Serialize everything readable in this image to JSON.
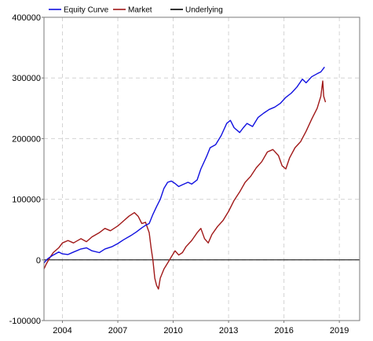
{
  "chart_data": {
    "type": "line",
    "title": "",
    "xlabel": "",
    "ylabel": "",
    "xlim": [
      2003.0,
      2020.1
    ],
    "ylim": [
      -100000,
      400000
    ],
    "x_ticks": [
      2004,
      2007,
      2010,
      2013,
      2016,
      2019
    ],
    "x_tick_labels": [
      "2004",
      "2007",
      "2010",
      "2013",
      "2016",
      "2019"
    ],
    "y_ticks": [
      -100000,
      0,
      100000,
      200000,
      300000,
      400000
    ],
    "y_tick_labels": [
      "-100000",
      "0",
      "100000",
      "200000",
      "300000",
      "400000"
    ],
    "grid": true,
    "legend_position": "top-left",
    "series": [
      {
        "name": "Equity Curve",
        "color": "#1010e0",
        "points": [
          [
            2003.0,
            -5000
          ],
          [
            2003.2,
            2000
          ],
          [
            2003.5,
            8000
          ],
          [
            2003.8,
            13000
          ],
          [
            2004.0,
            10000
          ],
          [
            2004.3,
            9000
          ],
          [
            2004.6,
            13000
          ],
          [
            2005.0,
            18000
          ],
          [
            2005.3,
            20000
          ],
          [
            2005.6,
            15000
          ],
          [
            2006.0,
            12000
          ],
          [
            2006.3,
            18000
          ],
          [
            2006.7,
            22000
          ],
          [
            2007.0,
            27000
          ],
          [
            2007.3,
            33000
          ],
          [
            2007.7,
            40000
          ],
          [
            2008.0,
            46000
          ],
          [
            2008.3,
            53000
          ],
          [
            2008.5,
            57000
          ],
          [
            2008.7,
            60000
          ],
          [
            2008.9,
            75000
          ],
          [
            2009.1,
            88000
          ],
          [
            2009.3,
            100000
          ],
          [
            2009.5,
            118000
          ],
          [
            2009.7,
            128000
          ],
          [
            2009.9,
            130000
          ],
          [
            2010.1,
            126000
          ],
          [
            2010.3,
            121000
          ],
          [
            2010.5,
            124000
          ],
          [
            2010.8,
            128000
          ],
          [
            2011.0,
            125000
          ],
          [
            2011.3,
            132000
          ],
          [
            2011.5,
            150000
          ],
          [
            2011.8,
            170000
          ],
          [
            2012.0,
            185000
          ],
          [
            2012.3,
            190000
          ],
          [
            2012.6,
            205000
          ],
          [
            2012.9,
            225000
          ],
          [
            2013.1,
            230000
          ],
          [
            2013.3,
            218000
          ],
          [
            2013.6,
            210000
          ],
          [
            2013.8,
            218000
          ],
          [
            2014.0,
            225000
          ],
          [
            2014.3,
            220000
          ],
          [
            2014.6,
            235000
          ],
          [
            2014.9,
            242000
          ],
          [
            2015.2,
            248000
          ],
          [
            2015.5,
            252000
          ],
          [
            2015.8,
            258000
          ],
          [
            2016.1,
            268000
          ],
          [
            2016.4,
            275000
          ],
          [
            2016.7,
            285000
          ],
          [
            2017.0,
            298000
          ],
          [
            2017.2,
            292000
          ],
          [
            2017.5,
            302000
          ],
          [
            2017.8,
            307000
          ],
          [
            2018.0,
            310000
          ],
          [
            2018.2,
            318000
          ]
        ]
      },
      {
        "name": "Market",
        "color": "#a01818",
        "points": [
          [
            2003.0,
            -15000
          ],
          [
            2003.1,
            -8000
          ],
          [
            2003.3,
            3000
          ],
          [
            2003.5,
            12000
          ],
          [
            2003.8,
            20000
          ],
          [
            2004.0,
            28000
          ],
          [
            2004.3,
            32000
          ],
          [
            2004.6,
            28000
          ],
          [
            2005.0,
            35000
          ],
          [
            2005.3,
            30000
          ],
          [
            2005.6,
            38000
          ],
          [
            2006.0,
            45000
          ],
          [
            2006.3,
            52000
          ],
          [
            2006.6,
            48000
          ],
          [
            2007.0,
            56000
          ],
          [
            2007.3,
            64000
          ],
          [
            2007.6,
            72000
          ],
          [
            2007.9,
            78000
          ],
          [
            2008.1,
            72000
          ],
          [
            2008.3,
            60000
          ],
          [
            2008.5,
            62000
          ],
          [
            2008.7,
            45000
          ],
          [
            2008.8,
            20000
          ],
          [
            2008.9,
            0
          ],
          [
            2009.0,
            -30000
          ],
          [
            2009.1,
            -42000
          ],
          [
            2009.2,
            -48000
          ],
          [
            2009.3,
            -30000
          ],
          [
            2009.5,
            -15000
          ],
          [
            2009.7,
            -5000
          ],
          [
            2009.9,
            5000
          ],
          [
            2010.1,
            15000
          ],
          [
            2010.3,
            8000
          ],
          [
            2010.5,
            12000
          ],
          [
            2010.7,
            22000
          ],
          [
            2011.0,
            32000
          ],
          [
            2011.3,
            45000
          ],
          [
            2011.5,
            52000
          ],
          [
            2011.7,
            35000
          ],
          [
            2011.9,
            28000
          ],
          [
            2012.1,
            42000
          ],
          [
            2012.4,
            55000
          ],
          [
            2012.7,
            65000
          ],
          [
            2013.0,
            80000
          ],
          [
            2013.3,
            98000
          ],
          [
            2013.6,
            112000
          ],
          [
            2013.9,
            128000
          ],
          [
            2014.2,
            138000
          ],
          [
            2014.5,
            152000
          ],
          [
            2014.8,
            162000
          ],
          [
            2015.1,
            178000
          ],
          [
            2015.4,
            182000
          ],
          [
            2015.7,
            172000
          ],
          [
            2015.9,
            155000
          ],
          [
            2016.1,
            150000
          ],
          [
            2016.3,
            168000
          ],
          [
            2016.6,
            185000
          ],
          [
            2016.9,
            195000
          ],
          [
            2017.2,
            212000
          ],
          [
            2017.5,
            232000
          ],
          [
            2017.8,
            250000
          ],
          [
            2018.0,
            270000
          ],
          [
            2018.1,
            295000
          ],
          [
            2018.15,
            270000
          ],
          [
            2018.25,
            260000
          ]
        ]
      },
      {
        "name": "Underlying",
        "color": "#000000",
        "points": [
          [
            2003.0,
            0
          ],
          [
            2020.1,
            0
          ]
        ]
      }
    ]
  }
}
